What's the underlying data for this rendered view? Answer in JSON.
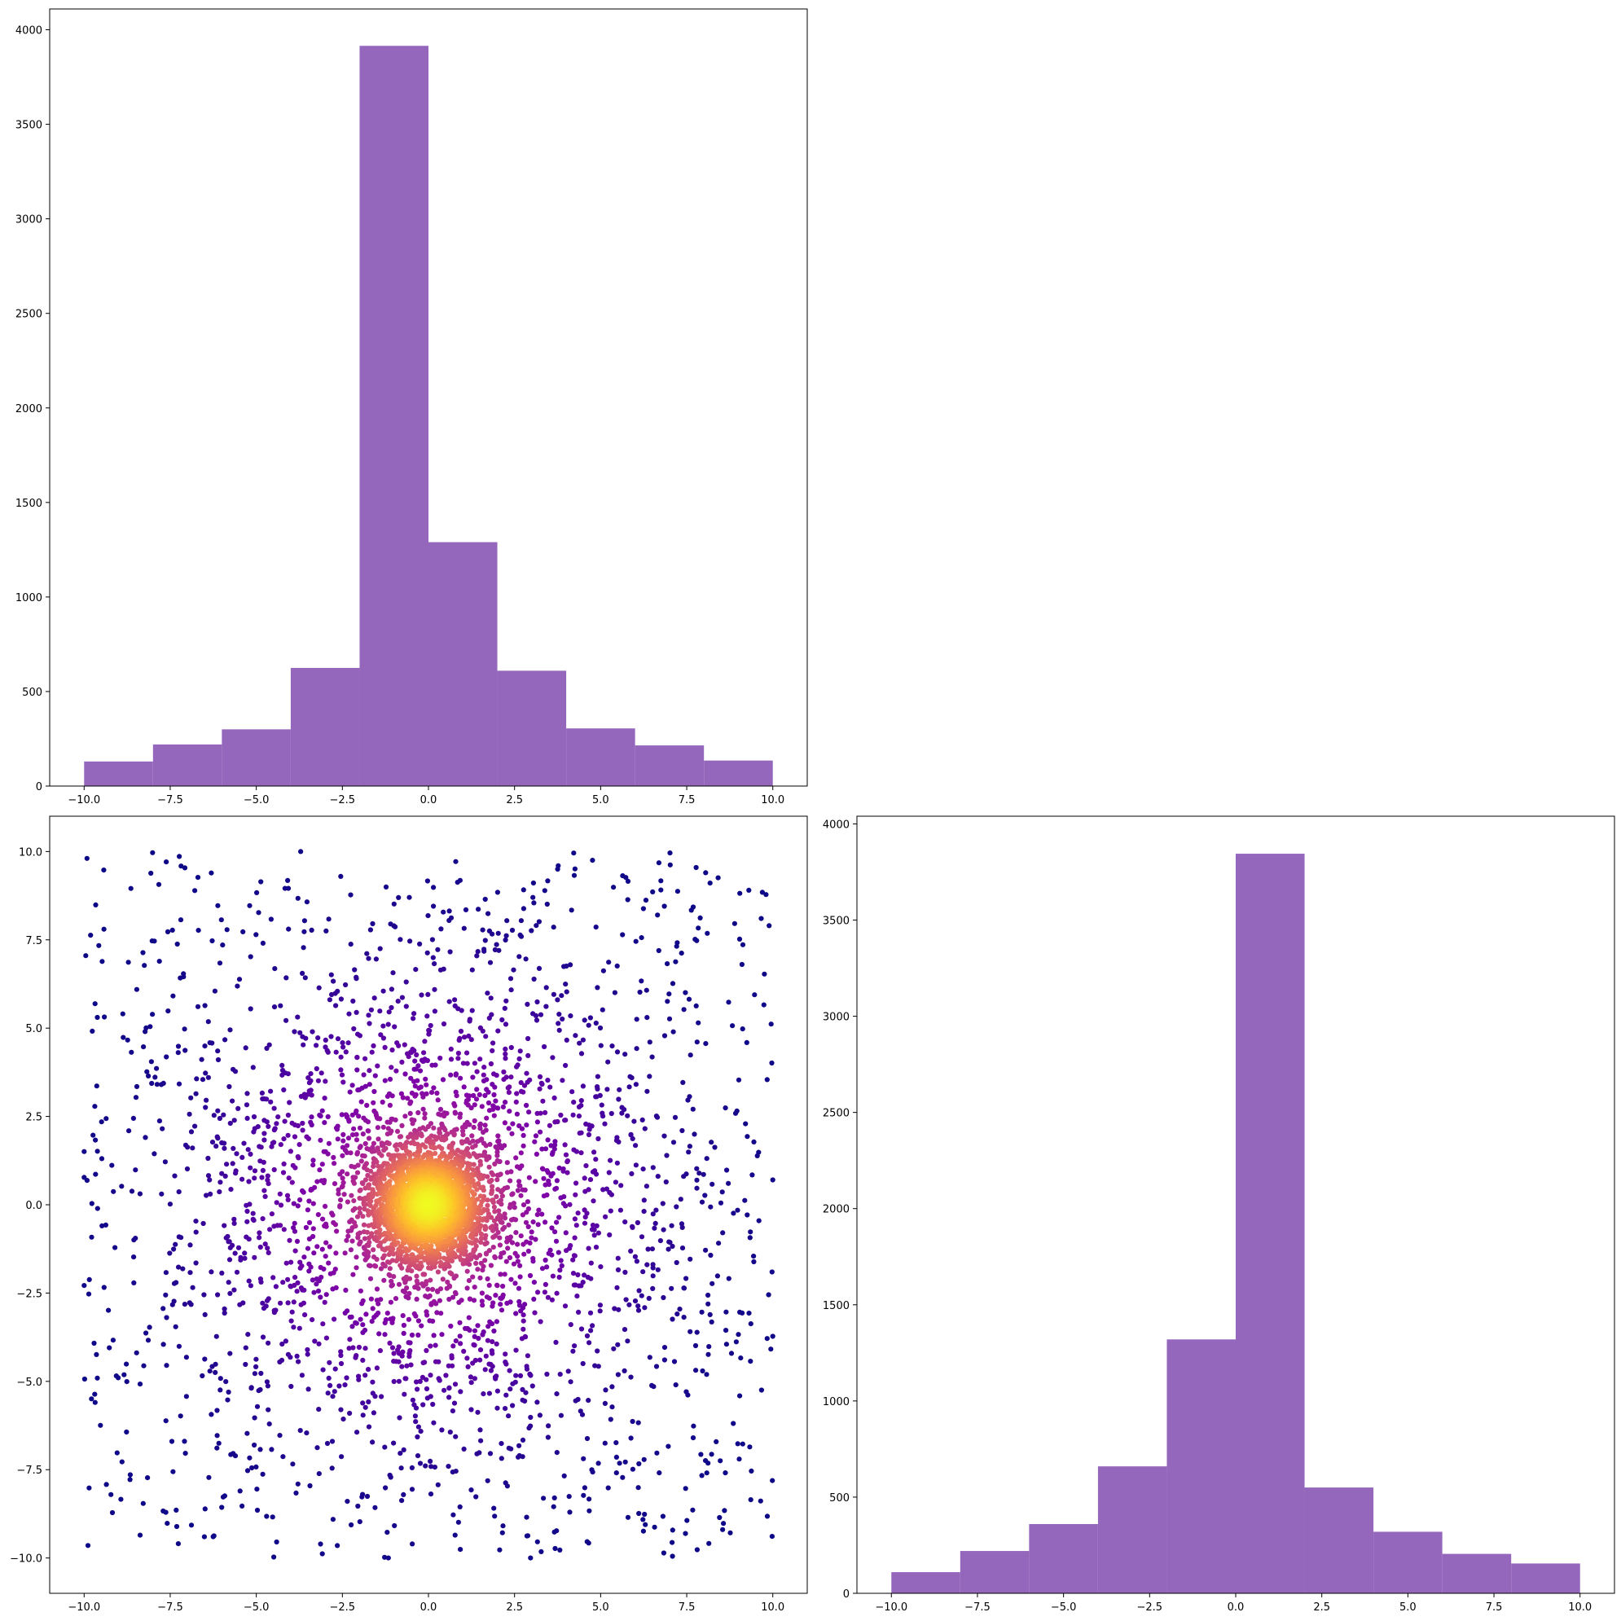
{
  "chart_data": [
    {
      "type": "bar",
      "panel": "top-left",
      "bin_edges": [
        -10.0,
        -8.0,
        -6.0,
        -4.0,
        -2.0,
        0.0,
        2.0,
        4.0,
        6.0,
        8.0,
        10.0
      ],
      "values": [
        130,
        220,
        300,
        625,
        3915,
        1290,
        610,
        305,
        215,
        135
      ],
      "color": "#9467bd",
      "xlim": [
        -11,
        11
      ],
      "ylim": [
        0,
        4110
      ],
      "xticks": [
        -10.0,
        -7.5,
        -5.0,
        -2.5,
        0.0,
        2.5,
        5.0,
        7.5,
        10.0
      ],
      "xtick_labels": [
        "−10.0",
        "−7.5",
        "−5.0",
        "−2.5",
        "0.0",
        "2.5",
        "5.0",
        "7.5",
        "10.0"
      ],
      "yticks": [
        0,
        500,
        1000,
        1500,
        2000,
        2500,
        3000,
        3500,
        4000
      ],
      "ytick_labels": [
        "0",
        "500",
        "1000",
        "1500",
        "2000",
        "2500",
        "3000",
        "3500",
        "4000"
      ],
      "title": "",
      "xlabel": "",
      "ylabel": ""
    },
    {
      "type": "scatter",
      "panel": "bottom-left",
      "n_points": 5000,
      "distribution": "centered cloud at (0,0), uniform background over [-10,10]x[-10,10]",
      "colormap": "plasma",
      "color_meaning": "point density (yellow = densest at center)",
      "xlim": [
        -11,
        11
      ],
      "ylim": [
        -11,
        11
      ],
      "xticks": [
        -10.0,
        -7.5,
        -5.0,
        -2.5,
        0.0,
        2.5,
        5.0,
        7.5,
        10.0
      ],
      "xtick_labels": [
        "−10.0",
        "−7.5",
        "−5.0",
        "−2.5",
        "0.0",
        "2.5",
        "5.0",
        "7.5",
        "10.0"
      ],
      "yticks": [
        -10.0,
        -7.5,
        -5.0,
        -2.5,
        0.0,
        2.5,
        5.0,
        7.5,
        10.0
      ],
      "ytick_labels": [
        "−10.0",
        "−7.5",
        "−5.0",
        "−2.5",
        "0.0",
        "2.5",
        "5.0",
        "7.5",
        "10.0"
      ],
      "title": "",
      "xlabel": "",
      "ylabel": ""
    },
    {
      "type": "bar",
      "panel": "bottom-right",
      "bin_edges": [
        -10.0,
        -8.0,
        -6.0,
        -4.0,
        -2.0,
        0.0,
        2.0,
        4.0,
        6.0,
        8.0,
        10.0
      ],
      "values": [
        110,
        220,
        360,
        660,
        1320,
        3845,
        550,
        320,
        205,
        155
      ],
      "color": "#9467bd",
      "xlim": [
        -11,
        11
      ],
      "ylim": [
        0,
        4040
      ],
      "xticks": [
        -10.0,
        -7.5,
        -5.0,
        -2.5,
        0.0,
        2.5,
        5.0,
        7.5,
        10.0
      ],
      "xtick_labels": [
        "−10.0",
        "−7.5",
        "−5.0",
        "−2.5",
        "0.0",
        "2.5",
        "5.0",
        "7.5",
        "10.0"
      ],
      "yticks": [
        0,
        500,
        1000,
        1500,
        2000,
        2500,
        3000,
        3500,
        4000
      ],
      "ytick_labels": [
        "0",
        "500",
        "1000",
        "1500",
        "2000",
        "2500",
        "3000",
        "3500",
        "4000"
      ],
      "title": "",
      "xlabel": "",
      "ylabel": ""
    }
  ]
}
